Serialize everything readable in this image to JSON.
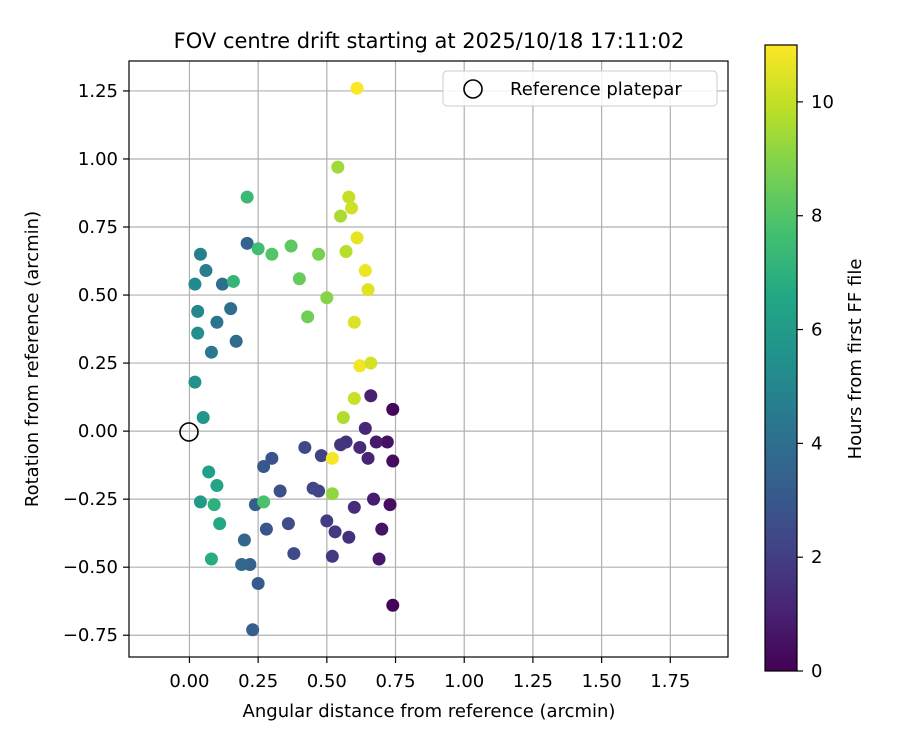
{
  "chart_data": {
    "type": "scatter",
    "title": "FOV centre drift starting at 2025/10/18 17:11:02",
    "xlabel": "Angular distance from reference (arcmin)",
    "ylabel": "Rotation from reference (arcmin)",
    "xlim": [
      -0.22,
      1.96
    ],
    "ylim": [
      -0.83,
      1.36
    ],
    "xticks": [
      0.0,
      0.25,
      0.5,
      0.75,
      1.0,
      1.25,
      1.5,
      1.75
    ],
    "xtick_labels": [
      "0.00",
      "0.25",
      "0.50",
      "0.75",
      "1.00",
      "1.25",
      "1.50",
      "1.75"
    ],
    "yticks": [
      -0.75,
      -0.5,
      -0.25,
      0.0,
      0.25,
      0.5,
      0.75,
      1.0,
      1.25
    ],
    "ytick_labels": [
      "−0.75",
      "−0.50",
      "−0.25",
      "0.00",
      "0.25",
      "0.50",
      "0.75",
      "1.00",
      "1.25"
    ],
    "grid": true,
    "legend": {
      "position": "top-right",
      "entries": [
        "Reference platepar"
      ]
    },
    "reference_point": {
      "x": 0.0,
      "y": 0.0
    },
    "colorbar": {
      "label": "Hours from first FF file",
      "range": [
        0,
        11
      ],
      "ticks": [
        0,
        2,
        4,
        6,
        8,
        10
      ],
      "tick_labels": [
        "0",
        "2",
        "4",
        "6",
        "8",
        "10"
      ],
      "colormap": "viridis"
    },
    "series": [
      {
        "points": [
          {
            "x": 0.74,
            "y": -0.64,
            "t": 0.1
          },
          {
            "x": 0.74,
            "y": 0.08,
            "t": 0.2
          },
          {
            "x": 0.74,
            "y": -0.11,
            "t": 0.3
          },
          {
            "x": 0.73,
            "y": -0.27,
            "t": 0.4
          },
          {
            "x": 0.72,
            "y": -0.04,
            "t": 0.5
          },
          {
            "x": 0.7,
            "y": -0.36,
            "t": 0.6
          },
          {
            "x": 0.69,
            "y": -0.47,
            "t": 0.7
          },
          {
            "x": 0.68,
            "y": -0.04,
            "t": 0.8
          },
          {
            "x": 0.67,
            "y": -0.25,
            "t": 0.9
          },
          {
            "x": 0.66,
            "y": 0.13,
            "t": 1.0
          },
          {
            "x": 0.65,
            "y": -0.1,
            "t": 1.1
          },
          {
            "x": 0.64,
            "y": 0.01,
            "t": 1.2
          },
          {
            "x": 0.62,
            "y": -0.06,
            "t": 1.3
          },
          {
            "x": 0.6,
            "y": -0.28,
            "t": 1.4
          },
          {
            "x": 0.58,
            "y": -0.39,
            "t": 1.5
          },
          {
            "x": 0.57,
            "y": -0.04,
            "t": 1.6
          },
          {
            "x": 0.55,
            "y": -0.05,
            "t": 1.7
          },
          {
            "x": 0.53,
            "y": -0.37,
            "t": 1.8
          },
          {
            "x": 0.52,
            "y": -0.46,
            "t": 1.9
          },
          {
            "x": 0.5,
            "y": -0.33,
            "t": 2.0
          },
          {
            "x": 0.48,
            "y": -0.09,
            "t": 2.1
          },
          {
            "x": 0.47,
            "y": -0.22,
            "t": 2.2
          },
          {
            "x": 0.45,
            "y": -0.21,
            "t": 2.3
          },
          {
            "x": 0.42,
            "y": -0.06,
            "t": 2.4
          },
          {
            "x": 0.38,
            "y": -0.45,
            "t": 2.5
          },
          {
            "x": 0.36,
            "y": -0.34,
            "t": 2.6
          },
          {
            "x": 0.33,
            "y": -0.22,
            "t": 2.7
          },
          {
            "x": 0.3,
            "y": -0.1,
            "t": 2.8
          },
          {
            "x": 0.28,
            "y": -0.36,
            "t": 2.9
          },
          {
            "x": 0.27,
            "y": -0.13,
            "t": 3.0
          },
          {
            "x": 0.25,
            "y": -0.56,
            "t": 3.1
          },
          {
            "x": 0.24,
            "y": -0.27,
            "t": 3.2
          },
          {
            "x": 0.23,
            "y": -0.73,
            "t": 3.3
          },
          {
            "x": 0.22,
            "y": -0.49,
            "t": 3.4
          },
          {
            "x": 0.21,
            "y": 0.69,
            "t": 3.5
          },
          {
            "x": 0.2,
            "y": -0.4,
            "t": 3.6
          },
          {
            "x": 0.19,
            "y": -0.49,
            "t": 3.7
          },
          {
            "x": 0.17,
            "y": 0.33,
            "t": 3.8
          },
          {
            "x": 0.15,
            "y": 0.45,
            "t": 3.9
          },
          {
            "x": 0.12,
            "y": 0.54,
            "t": 4.0
          },
          {
            "x": 0.1,
            "y": 0.4,
            "t": 4.2
          },
          {
            "x": 0.08,
            "y": 0.29,
            "t": 4.4
          },
          {
            "x": 0.06,
            "y": 0.59,
            "t": 4.6
          },
          {
            "x": 0.04,
            "y": 0.65,
            "t": 4.8
          },
          {
            "x": 0.03,
            "y": 0.44,
            "t": 5.0
          },
          {
            "x": 0.02,
            "y": 0.54,
            "t": 5.2
          },
          {
            "x": 0.03,
            "y": 0.36,
            "t": 5.4
          },
          {
            "x": 0.02,
            "y": 0.18,
            "t": 5.6
          },
          {
            "x": 0.05,
            "y": 0.05,
            "t": 5.8
          },
          {
            "x": 0.04,
            "y": -0.26,
            "t": 6.0
          },
          {
            "x": 0.07,
            "y": -0.15,
            "t": 6.2
          },
          {
            "x": 0.1,
            "y": -0.2,
            "t": 6.4
          },
          {
            "x": 0.11,
            "y": -0.34,
            "t": 6.6
          },
          {
            "x": 0.08,
            "y": -0.47,
            "t": 6.8
          },
          {
            "x": 0.09,
            "y": -0.27,
            "t": 7.0
          },
          {
            "x": 0.16,
            "y": 0.55,
            "t": 7.2
          },
          {
            "x": 0.21,
            "y": 0.86,
            "t": 7.4
          },
          {
            "x": 0.25,
            "y": 0.67,
            "t": 7.6
          },
          {
            "x": 0.27,
            "y": -0.26,
            "t": 7.8
          },
          {
            "x": 0.3,
            "y": 0.65,
            "t": 8.0
          },
          {
            "x": 0.37,
            "y": 0.68,
            "t": 8.2
          },
          {
            "x": 0.4,
            "y": 0.56,
            "t": 8.4
          },
          {
            "x": 0.43,
            "y": 0.42,
            "t": 8.6
          },
          {
            "x": 0.47,
            "y": 0.65,
            "t": 8.8
          },
          {
            "x": 0.5,
            "y": 0.49,
            "t": 9.0
          },
          {
            "x": 0.52,
            "y": -0.23,
            "t": 9.2
          },
          {
            "x": 0.54,
            "y": 0.97,
            "t": 9.4
          },
          {
            "x": 0.55,
            "y": 0.79,
            "t": 9.6
          },
          {
            "x": 0.57,
            "y": 0.66,
            "t": 9.8
          },
          {
            "x": 0.58,
            "y": 0.86,
            "t": 10.0
          },
          {
            "x": 0.59,
            "y": 0.82,
            "t": 10.2
          },
          {
            "x": 0.6,
            "y": 0.4,
            "t": 10.4
          },
          {
            "x": 0.61,
            "y": 0.71,
            "t": 10.6
          },
          {
            "x": 0.62,
            "y": 0.24,
            "t": 10.8
          },
          {
            "x": 0.61,
            "y": 1.26,
            "t": 11.0
          },
          {
            "x": 0.52,
            "y": -0.1,
            "t": 10.9
          },
          {
            "x": 0.64,
            "y": 0.59,
            "t": 10.7
          },
          {
            "x": 0.65,
            "y": 0.52,
            "t": 10.5
          },
          {
            "x": 0.66,
            "y": 0.25,
            "t": 10.3
          },
          {
            "x": 0.6,
            "y": 0.12,
            "t": 10.1
          },
          {
            "x": 0.56,
            "y": 0.05,
            "t": 9.7
          }
        ]
      }
    ]
  }
}
